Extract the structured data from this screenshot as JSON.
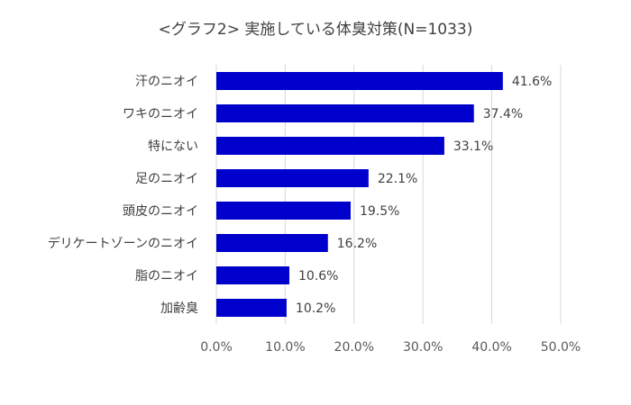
{
  "chart_data": {
    "type": "bar",
    "orientation": "horizontal",
    "title": "<グラフ2> 実施している体臭対策(N=1033)",
    "categories": [
      "汗のニオイ",
      "ワキのニオイ",
      "特にない",
      "足のニオイ",
      "頭皮のニオイ",
      "デリケートゾーンのニオイ",
      "脂のニオイ",
      "加齢臭"
    ],
    "values": [
      41.6,
      37.4,
      33.1,
      22.1,
      19.5,
      16.2,
      10.6,
      10.2
    ],
    "data_labels": [
      "41.6%",
      "37.4%",
      "33.1%",
      "22.1%",
      "19.5%",
      "16.2%",
      "10.6%",
      "10.2%"
    ],
    "xlim": [
      0,
      50
    ],
    "x_ticks": [
      0,
      10,
      20,
      30,
      40,
      50
    ],
    "x_tick_labels": [
      "0.0%",
      "10.0%",
      "20.0%",
      "30.0%",
      "40.0%",
      "50.0%"
    ],
    "xlabel": "",
    "ylabel": "",
    "grid": "vertical",
    "legend": "none",
    "bar_color": "#0000CC",
    "grid_color": "#D9D9D9"
  }
}
